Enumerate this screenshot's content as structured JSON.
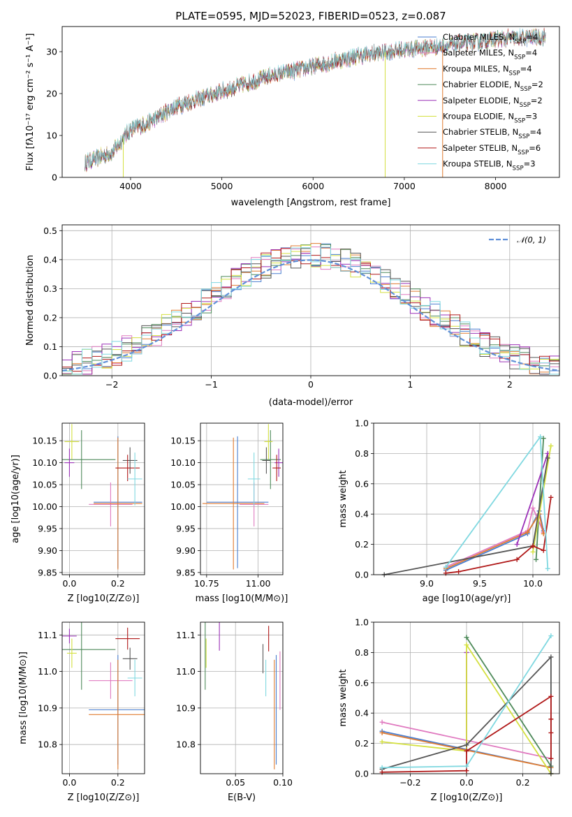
{
  "colors": {
    "chabrier_miles": "#4a7fd0",
    "salpeter_miles": "#e07ac0",
    "kroupa_miles": "#e07b30",
    "chabrier_elodie": "#4e8a5a",
    "salpeter_elodie": "#9b30b8",
    "kroupa_elodie": "#d4e040",
    "chabrier_stelib": "#555555",
    "salpeter_stelib": "#b01818",
    "kroupa_stelib": "#7fd8e0",
    "normal": "#6090d8",
    "grid": "#b0b0b0"
  },
  "chart_data": [
    {
      "id": "spectrum",
      "type": "line",
      "title": "PLATE=0595, MJD=52023, FIBERID=0523, z=0.087",
      "xlabel": "wavelength [Angstrom, rest frame]",
      "ylabel": "Flux [fλ10⁻¹⁷ erg cm⁻² s⁻¹ A⁻¹]",
      "xlim": [
        3250,
        8700
      ],
      "ylim": [
        0,
        36
      ],
      "xticks": [
        "4000",
        "5000",
        "6000",
        "7000",
        "8000"
      ],
      "yticks": [
        "0",
        "10",
        "20",
        "30"
      ],
      "grid": false,
      "legend_placement": "top-right",
      "continuum_knots": {
        "x": [
          3500,
          3800,
          4000,
          4200,
          4500,
          5000,
          5500,
          6000,
          6500,
          7000,
          7500,
          8000,
          8500
        ],
        "y": [
          3.5,
          6.0,
          11.5,
          13.0,
          17.0,
          20.5,
          24.0,
          26.5,
          29.0,
          30.5,
          31.5,
          33.0,
          33.5
        ]
      },
      "series": [
        {
          "label": "Chabrier MILES, N",
          "sub": "SSP",
          "suffix": "=4",
          "color_key": "chabrier_miles"
        },
        {
          "label": "Salpeter MILES, N",
          "sub": "SSP",
          "suffix": "=4",
          "color_key": "salpeter_miles"
        },
        {
          "label": "Kroupa MILES, N",
          "sub": "SSP",
          "suffix": "=4",
          "color_key": "kroupa_miles"
        },
        {
          "label": "Chabrier ELODIE, N",
          "sub": "SSP",
          "suffix": "=2",
          "color_key": "chabrier_elodie"
        },
        {
          "label": "Salpeter ELODIE, N",
          "sub": "SSP",
          "suffix": "=2",
          "color_key": "salpeter_elodie"
        },
        {
          "label": "Kroupa ELODIE, N",
          "sub": "SSP",
          "suffix": "=3",
          "color_key": "kroupa_elodie"
        },
        {
          "label": "Chabrier STELIB, N",
          "sub": "SSP",
          "suffix": "=4",
          "color_key": "chabrier_stelib"
        },
        {
          "label": "Salpeter STELIB, N",
          "sub": "SSP",
          "suffix": "=6",
          "color_key": "salpeter_stelib"
        },
        {
          "label": "Kroupa STELIB, N",
          "sub": "SSP",
          "suffix": "=3",
          "color_key": "kroupa_stelib"
        }
      ],
      "dropouts": [
        {
          "x": 3920,
          "color_key": "kroupa_elodie"
        },
        {
          "x": 6790,
          "color_key": "kroupa_elodie"
        },
        {
          "x": 7420,
          "color_key": "kroupa_miles"
        }
      ]
    },
    {
      "id": "residuals",
      "type": "step",
      "xlabel": "(data-model)/error",
      "ylabel": "Normed distribution",
      "xlim": [
        -2.5,
        2.5
      ],
      "ylim": [
        0,
        0.52
      ],
      "xticks": [
        "−2",
        "−1",
        "0",
        "1",
        "2"
      ],
      "xtick_values": [
        -2,
        -1,
        0,
        1,
        2
      ],
      "yticks": [
        "0.0",
        "0.1",
        "0.2",
        "0.3",
        "0.4",
        "0.5"
      ],
      "ytick_values": [
        0,
        0.1,
        0.2,
        0.3,
        0.4,
        0.5
      ],
      "grid": true,
      "legend_placement": "top-right",
      "bin_width": 0.1,
      "bin_start": -2.5,
      "normal_label": "𝒩(0, 1)"
    },
    {
      "id": "age-vs-z",
      "type": "errorbar",
      "xlabel": "Z [log10(Z/Z⊙)]",
      "ylabel": "age  [log10(age/yr)]",
      "xlim": [
        -0.03,
        0.31
      ],
      "ylim": [
        9.845,
        10.19
      ],
      "xticks": [
        "0.0",
        "0.2"
      ],
      "xtick_values": [
        0,
        0.2
      ],
      "yticks": [
        "9.85",
        "9.90",
        "9.95",
        "10.00",
        "10.05",
        "10.10",
        "10.15"
      ],
      "ytick_values": [
        9.85,
        9.9,
        9.95,
        10.0,
        10.05,
        10.1,
        10.15
      ],
      "grid": true,
      "points": [
        {
          "color_key": "chabrier_miles",
          "x": 0.2,
          "y": 10.01,
          "xerr": 0.1,
          "yerr": 0.15
        },
        {
          "color_key": "salpeter_miles",
          "x": 0.17,
          "y": 10.005,
          "xerr": 0.09,
          "yerr": 0.05
        },
        {
          "color_key": "kroupa_miles",
          "x": 0.2,
          "y": 10.007,
          "xerr": 0.1,
          "yerr": 0.15
        },
        {
          "color_key": "chabrier_elodie",
          "x": 0.05,
          "y": 10.107,
          "xerr": 0.14,
          "yerr": 0.067
        },
        {
          "color_key": "salpeter_elodie",
          "x": 0.0,
          "y": 10.1,
          "xerr": 0.02,
          "yerr": 0.032
        },
        {
          "color_key": "kroupa_elodie",
          "x": 0.01,
          "y": 10.148,
          "xerr": 0.03,
          "yerr": 0.04
        },
        {
          "color_key": "chabrier_stelib",
          "x": 0.25,
          "y": 10.105,
          "xerr": 0.03,
          "yerr": 0.03
        },
        {
          "color_key": "salpeter_stelib",
          "x": 0.24,
          "y": 10.088,
          "xerr": 0.05,
          "yerr": 0.03
        },
        {
          "color_key": "kroupa_stelib",
          "x": 0.27,
          "y": 10.063,
          "xerr": 0.03,
          "yerr": 0.06
        }
      ]
    },
    {
      "id": "age-vs-mass",
      "type": "errorbar",
      "xlabel": "mass [log10(M/M⊙)]",
      "ylabel": "",
      "xlim": [
        10.72,
        11.12
      ],
      "ylim": [
        9.845,
        10.19
      ],
      "xticks": [
        "10.75",
        "11.00"
      ],
      "xtick_values": [
        10.75,
        11.0
      ],
      "yticks": [
        "9.85",
        "9.90",
        "9.95",
        "10.00",
        "10.05",
        "10.10",
        "10.15"
      ],
      "ytick_values": [
        9.85,
        9.9,
        9.95,
        10.0,
        10.05,
        10.1,
        10.15
      ],
      "grid": true,
      "points": [
        {
          "color_key": "chabrier_miles",
          "x": 10.9,
          "y": 10.01,
          "xerr": 0.15,
          "yerr": 0.15
        },
        {
          "color_key": "salpeter_miles",
          "x": 10.98,
          "y": 10.005,
          "xerr": 0.07,
          "yerr": 0.05
        },
        {
          "color_key": "kroupa_miles",
          "x": 10.88,
          "y": 10.007,
          "xerr": 0.15,
          "yerr": 0.15
        },
        {
          "color_key": "chabrier_elodie",
          "x": 11.06,
          "y": 10.107,
          "xerr": 0.05,
          "yerr": 0.067
        },
        {
          "color_key": "salpeter_elodie",
          "x": 11.1,
          "y": 10.1,
          "xerr": 0.02,
          "yerr": 0.032
        },
        {
          "color_key": "kroupa_elodie",
          "x": 11.05,
          "y": 10.148,
          "xerr": 0.02,
          "yerr": 0.04
        },
        {
          "color_key": "chabrier_stelib",
          "x": 11.04,
          "y": 10.105,
          "xerr": 0.02,
          "yerr": 0.03
        },
        {
          "color_key": "salpeter_stelib",
          "x": 11.09,
          "y": 10.088,
          "xerr": 0.02,
          "yerr": 0.03
        },
        {
          "color_key": "kroupa_stelib",
          "x": 10.98,
          "y": 10.063,
          "xerr": 0.03,
          "yerr": 0.06
        }
      ]
    },
    {
      "id": "weight-vs-age",
      "type": "line",
      "xlabel": "age  [log10(age/yr)]",
      "ylabel": "mass weight",
      "xlim": [
        8.5,
        10.25
      ],
      "ylim": [
        0,
        1.0
      ],
      "xticks": [
        "9.0",
        "9.5",
        "10.0"
      ],
      "xtick_values": [
        9.0,
        9.5,
        10.0
      ],
      "yticks": [
        "0.0",
        "0.2",
        "0.4",
        "0.6",
        "0.8",
        "1.0"
      ],
      "ytick_values": [
        0,
        0.2,
        0.4,
        0.6,
        0.8,
        1.0
      ],
      "grid": true,
      "series": [
        {
          "color_key": "chabrier_miles",
          "x": [
            9.18,
            9.95,
            10.06,
            10.1
          ],
          "y": [
            0.03,
            0.27,
            0.42,
            0.29
          ]
        },
        {
          "color_key": "salpeter_miles",
          "x": [
            9.18,
            9.95,
            10.0,
            10.1
          ],
          "y": [
            0.05,
            0.29,
            0.44,
            0.28
          ]
        },
        {
          "color_key": "kroupa_miles",
          "x": [
            9.18,
            9.95,
            10.06,
            10.1
          ],
          "y": [
            0.04,
            0.28,
            0.4,
            0.27
          ]
        },
        {
          "color_key": "chabrier_elodie",
          "x": [
            10.03,
            10.1
          ],
          "y": [
            0.1,
            0.9
          ]
        },
        {
          "color_key": "salpeter_elodie",
          "x": [
            9.85,
            10.14
          ],
          "y": [
            0.2,
            0.8
          ]
        },
        {
          "color_key": "kroupa_elodie",
          "x": [
            10.0,
            10.17
          ],
          "y": [
            0.15,
            0.85
          ]
        },
        {
          "color_key": "chabrier_stelib",
          "x": [
            8.6,
            10.0,
            10.14
          ],
          "y": [
            0.0,
            0.19,
            0.77
          ]
        },
        {
          "color_key": "salpeter_stelib",
          "x": [
            9.18,
            9.3,
            9.85,
            10.0,
            10.1,
            10.17
          ],
          "y": [
            0.01,
            0.02,
            0.1,
            0.19,
            0.16,
            0.51
          ]
        },
        {
          "color_key": "kroupa_stelib",
          "x": [
            9.18,
            10.07,
            10.14
          ],
          "y": [
            0.05,
            0.91,
            0.04
          ]
        }
      ]
    },
    {
      "id": "mass-vs-z",
      "type": "errorbar",
      "xlabel": "Z [log10(Z/Z⊙)]",
      "ylabel": "mass [log10(M/M⊙)]",
      "xlim": [
        -0.03,
        0.31
      ],
      "ylim": [
        10.72,
        11.135
      ],
      "xticks": [
        "0.0",
        "0.2"
      ],
      "xtick_values": [
        0,
        0.2
      ],
      "yticks": [
        "10.8",
        "10.9",
        "11.0",
        "11.1"
      ],
      "ytick_values": [
        10.8,
        10.9,
        11.0,
        11.1
      ],
      "grid": true,
      "points": [
        {
          "color_key": "chabrier_miles",
          "x": 0.2,
          "y": 10.895,
          "xerr": 0.12,
          "yerr": 0.15
        },
        {
          "color_key": "salpeter_miles",
          "x": 0.17,
          "y": 10.975,
          "xerr": 0.09,
          "yerr": 0.05
        },
        {
          "color_key": "kroupa_miles",
          "x": 0.2,
          "y": 10.882,
          "xerr": 0.12,
          "yerr": 0.15
        },
        {
          "color_key": "chabrier_elodie",
          "x": 0.05,
          "y": 11.06,
          "xerr": 0.14,
          "yerr": 0.11
        },
        {
          "color_key": "salpeter_elodie",
          "x": 0.0,
          "y": 11.097,
          "xerr": 0.03,
          "yerr": 0.02
        },
        {
          "color_key": "kroupa_elodie",
          "x": 0.01,
          "y": 11.05,
          "xerr": 0.02,
          "yerr": 0.04
        },
        {
          "color_key": "chabrier_stelib",
          "x": 0.25,
          "y": 11.035,
          "xerr": 0.03,
          "yerr": 0.03
        },
        {
          "color_key": "salpeter_stelib",
          "x": 0.24,
          "y": 11.09,
          "xerr": 0.05,
          "yerr": 0.03
        },
        {
          "color_key": "kroupa_stelib",
          "x": 0.27,
          "y": 10.982,
          "xerr": 0.03,
          "yerr": 0.05
        }
      ]
    },
    {
      "id": "mass-vs-ebv",
      "type": "errorbar",
      "xlabel": "E(B-V)",
      "ylabel": "",
      "xlim": [
        0.013,
        0.1
      ],
      "ylim": [
        10.72,
        11.135
      ],
      "xticks": [
        "0.05",
        "0.10"
      ],
      "xtick_values": [
        0.05,
        0.1
      ],
      "yticks": [
        "10.8",
        "10.9",
        "11.0",
        "11.1"
      ],
      "ytick_values": [
        10.8,
        10.9,
        11.0,
        11.1
      ],
      "grid": true,
      "points": [
        {
          "color_key": "chabrier_miles",
          "x": 0.093,
          "y": 10.895,
          "xerr": 0.0,
          "yerr": 0.15
        },
        {
          "color_key": "salpeter_miles",
          "x": 0.097,
          "y": 10.975,
          "xerr": 0.0,
          "yerr": 0.08
        },
        {
          "color_key": "kroupa_miles",
          "x": 0.091,
          "y": 10.882,
          "xerr": 0.0,
          "yerr": 0.15
        },
        {
          "color_key": "chabrier_elodie",
          "x": 0.018,
          "y": 11.06,
          "xerr": 0.0,
          "yerr": 0.11
        },
        {
          "color_key": "salpeter_elodie",
          "x": 0.033,
          "y": 11.097,
          "xerr": 0.0,
          "yerr": 0.04
        },
        {
          "color_key": "kroupa_elodie",
          "x": 0.019,
          "y": 11.05,
          "xerr": 0.0,
          "yerr": 0.04
        },
        {
          "color_key": "chabrier_stelib",
          "x": 0.079,
          "y": 11.035,
          "xerr": 0.0,
          "yerr": 0.04
        },
        {
          "color_key": "salpeter_stelib",
          "x": 0.085,
          "y": 11.09,
          "xerr": 0.0,
          "yerr": 0.035
        },
        {
          "color_key": "kroupa_stelib",
          "x": 0.082,
          "y": 10.982,
          "xerr": 0.0,
          "yerr": 0.05
        }
      ]
    },
    {
      "id": "weight-vs-z",
      "type": "line",
      "xlabel": "Z [log10(Z/Z⊙)]",
      "ylabel": "mass weight",
      "xlim": [
        -0.33,
        0.33
      ],
      "ylim": [
        0,
        1.0
      ],
      "xticks": [
        "−0.2",
        "0.0",
        "0.2"
      ],
      "xtick_values": [
        -0.2,
        0.0,
        0.2
      ],
      "yticks": [
        "0.0",
        "0.2",
        "0.4",
        "0.6",
        "0.8",
        "1.0"
      ],
      "ytick_values": [
        0,
        0.2,
        0.4,
        0.6,
        0.8,
        1.0
      ],
      "grid": true,
      "series": [
        {
          "color_key": "chabrier_miles",
          "x": [
            -0.3,
            0.3
          ],
          "y": [
            0.28,
            0.04
          ]
        },
        {
          "color_key": "salpeter_miles",
          "x": [
            -0.3,
            0.3
          ],
          "y": [
            0.34,
            0.1
          ]
        },
        {
          "color_key": "kroupa_miles",
          "x": [
            -0.3,
            0.3
          ],
          "y": [
            0.27,
            0.04
          ]
        },
        {
          "color_key": "chabrier_elodie",
          "x": [
            0.0,
            0.3
          ],
          "y": [
            0.9,
            0.05
          ]
        },
        {
          "color_key": "salpeter_elodie",
          "x": [
            0.0,
            0.0
          ],
          "y": [
            0.15,
            0.8
          ]
        },
        {
          "color_key": "kroupa_elodie",
          "x": [
            -0.3,
            0.0,
            0.0,
            0.3
          ],
          "y": [
            0.21,
            0.15,
            0.85,
            0.0
          ]
        },
        {
          "color_key": "chabrier_stelib",
          "x": [
            -0.3,
            0.0,
            0.3,
            0.3
          ],
          "y": [
            0.03,
            0.19,
            0.77,
            0.0
          ]
        },
        {
          "color_key": "salpeter_stelib",
          "x": [
            -0.3,
            0.0,
            0.0,
            0.3,
            0.3,
            0.3,
            0.3
          ],
          "y": [
            0.01,
            0.02,
            0.15,
            0.51,
            0.1,
            0.27,
            0.36
          ]
        },
        {
          "color_key": "kroupa_stelib",
          "x": [
            -0.3,
            0.0,
            0.3
          ],
          "y": [
            0.04,
            0.05,
            0.91
          ]
        }
      ]
    }
  ]
}
